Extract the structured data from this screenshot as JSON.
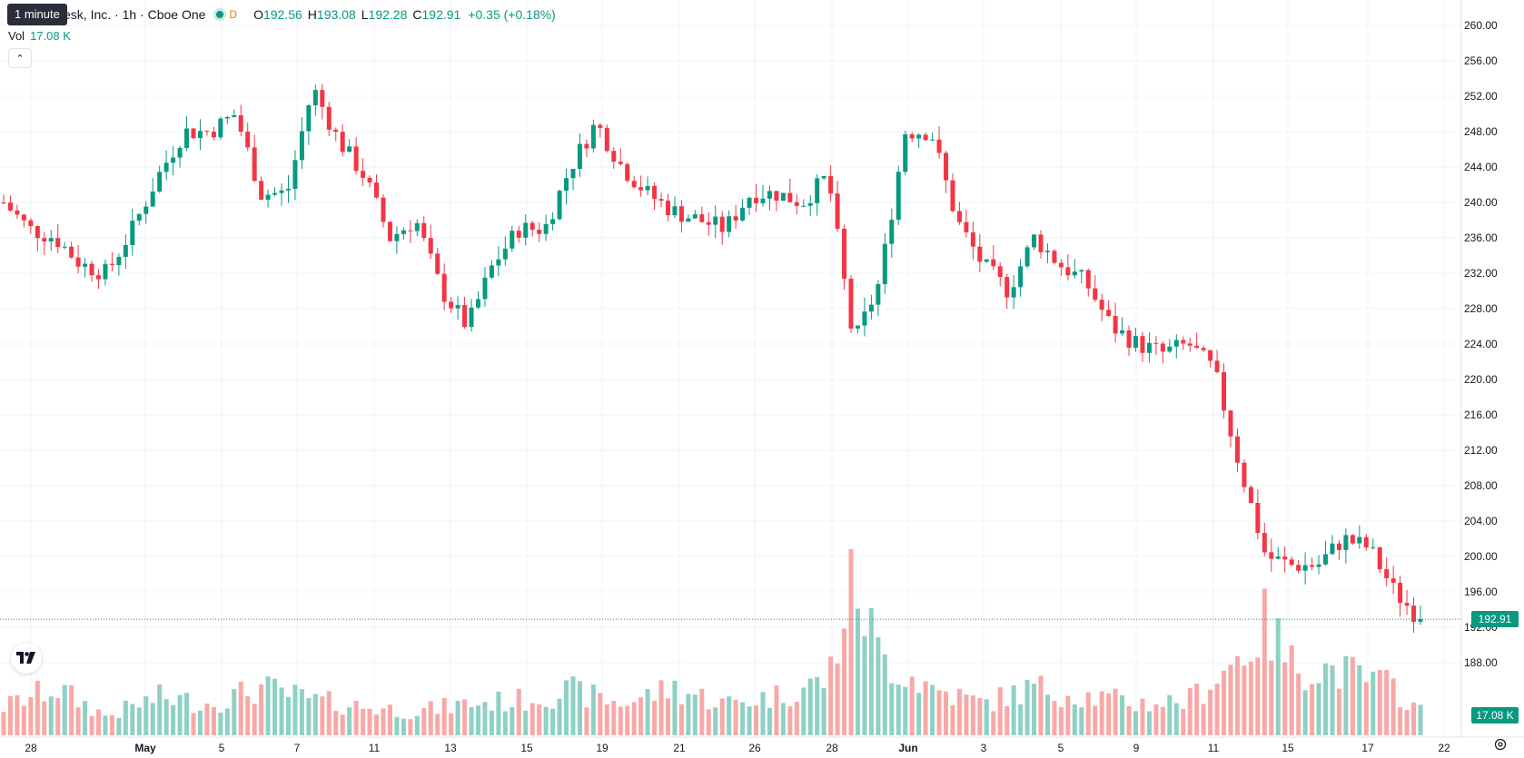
{
  "legend": {
    "title": "esk, Inc. · 1h · Cboe One",
    "interval_badge": "D",
    "open_label": "O",
    "open": "192.56",
    "high_label": "H",
    "high": "193.08",
    "low_label": "L",
    "low": "192.28",
    "close_label": "C",
    "close": "192.91",
    "change": "+0.35 (+0.18%)"
  },
  "tooltip": "1 minute",
  "volume": {
    "label": "Vol",
    "value": "17.08 K"
  },
  "collapse_icon": "chevron-up-icon",
  "logo_icon": "tradingview-logo-icon",
  "settings_icon": "gear-icon",
  "last_price_tag": "192.91",
  "last_volume_tag": "17.08 K",
  "colors": {
    "up": "#089981",
    "down": "#f23645",
    "up_volume": "#8fd0c5",
    "down_volume": "#f7a9a7",
    "grid": "#f0f3fa"
  },
  "chart_data": {
    "type": "candlestick",
    "y_axis": {
      "min": 184,
      "max": 262,
      "ticks": [
        260,
        256,
        252,
        248,
        244,
        240,
        236,
        232,
        228,
        224,
        220,
        216,
        212,
        208,
        204,
        200,
        196,
        192,
        188
      ]
    },
    "x_tick_labels": [
      "28",
      "May",
      "5",
      "7",
      "11",
      "13",
      "15",
      "19",
      "21",
      "26",
      "28",
      "Jun",
      "3",
      "5",
      "9",
      "11",
      "15",
      "17",
      "22"
    ],
    "anchors": [
      [
        0,
        240
      ],
      [
        1,
        237
      ],
      [
        2,
        236
      ],
      [
        3,
        233
      ],
      [
        4,
        232
      ],
      [
        5,
        237
      ],
      [
        6,
        243
      ],
      [
        7,
        248
      ],
      [
        8,
        248
      ],
      [
        9,
        250
      ],
      [
        10,
        241
      ],
      [
        11,
        241
      ],
      [
        12,
        253
      ],
      [
        13,
        247
      ],
      [
        14,
        243
      ],
      [
        15,
        236
      ],
      [
        16,
        238
      ],
      [
        17,
        230
      ],
      [
        18,
        226
      ],
      [
        19,
        233
      ],
      [
        20,
        237
      ],
      [
        21,
        237
      ],
      [
        22,
        244
      ],
      [
        23,
        249
      ],
      [
        24,
        244
      ],
      [
        25,
        241
      ],
      [
        26,
        239
      ],
      [
        27,
        238
      ],
      [
        28,
        237
      ],
      [
        29,
        241
      ],
      [
        30,
        241
      ],
      [
        31,
        240
      ],
      [
        32,
        243
      ],
      [
        33,
        224
      ],
      [
        34,
        231
      ],
      [
        35,
        248
      ],
      [
        36,
        248
      ],
      [
        37,
        238
      ],
      [
        38,
        233
      ],
      [
        39,
        230
      ],
      [
        40,
        236
      ],
      [
        41,
        233
      ],
      [
        42,
        231
      ],
      [
        43,
        226
      ],
      [
        44,
        224
      ],
      [
        45,
        223
      ],
      [
        46,
        224
      ],
      [
        47,
        221
      ],
      [
        48,
        210
      ],
      [
        49,
        200
      ],
      [
        50,
        199
      ],
      [
        51,
        199
      ],
      [
        52,
        202
      ],
      [
        53,
        201
      ],
      [
        54,
        196
      ],
      [
        55,
        192.9
      ]
    ],
    "volume_anchors": [
      [
        0,
        0.18
      ],
      [
        2,
        0.3
      ],
      [
        4,
        0.12
      ],
      [
        6,
        0.24
      ],
      [
        8,
        0.2
      ],
      [
        10,
        0.3
      ],
      [
        12,
        0.22
      ],
      [
        14,
        0.18
      ],
      [
        16,
        0.15
      ],
      [
        18,
        0.2
      ],
      [
        20,
        0.22
      ],
      [
        22,
        0.28
      ],
      [
        24,
        0.2
      ],
      [
        26,
        0.3
      ],
      [
        28,
        0.2
      ],
      [
        30,
        0.25
      ],
      [
        32,
        0.35
      ],
      [
        33,
        1.0
      ],
      [
        34,
        0.5
      ],
      [
        36,
        0.3
      ],
      [
        38,
        0.2
      ],
      [
        40,
        0.3
      ],
      [
        42,
        0.25
      ],
      [
        44,
        0.2
      ],
      [
        46,
        0.22
      ],
      [
        48,
        0.5
      ],
      [
        49,
        0.7
      ],
      [
        50,
        0.45
      ],
      [
        52,
        0.4
      ],
      [
        54,
        0.3
      ],
      [
        55,
        0.15
      ]
    ],
    "last_price": 192.91,
    "last_volume": "17.08 K"
  }
}
